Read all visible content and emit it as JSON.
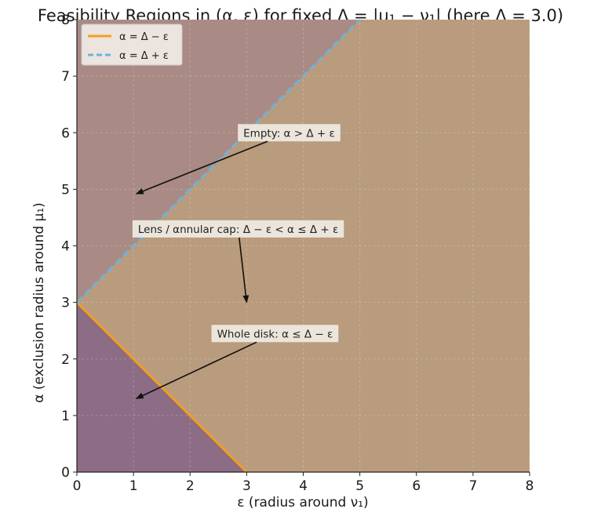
{
  "chart_data": {
    "type": "area",
    "title": "Feasibility Regions in (α, ε) for fixed Δ = |μ₁ − ν₁|  (here Δ = 3.0)",
    "xlabel": "ε (radius around ν₁)",
    "ylabel": "α (exclusion radius around μ₁)",
    "xlim": [
      0,
      8
    ],
    "ylim": [
      0,
      8
    ],
    "xticks": [
      0,
      1,
      2,
      3,
      4,
      5,
      6,
      7,
      8
    ],
    "yticks": [
      0,
      1,
      2,
      3,
      4,
      5,
      6,
      7,
      8
    ],
    "grid": true,
    "legend_position": "top-left",
    "delta": 3.0,
    "regions": [
      {
        "name": "Empty",
        "color": "#a98a84"
      },
      {
        "name": "Lens / annular cap",
        "color": "#b99b7d"
      },
      {
        "name": "Whole disk",
        "color": "#8d6c85"
      }
    ],
    "series": [
      {
        "name": "α = Δ − ε",
        "x": [
          0,
          3
        ],
        "y": [
          3,
          0
        ],
        "color": "#f0a020",
        "style": "solid"
      },
      {
        "name": "α = Δ + ε",
        "x": [
          0,
          5
        ],
        "y": [
          3,
          8
        ],
        "color": "#6cb4dc",
        "style": "dashed"
      }
    ],
    "annotations": [
      {
        "text": "Empty: α > Δ + ε",
        "text_at": [
          3.75,
          6.0
        ],
        "arrow_to": [
          1.05,
          4.92
        ]
      },
      {
        "text": "Lens / αnnular cap: Δ − ε < α ≤ Δ + ε",
        "text_at": [
          2.85,
          4.3
        ],
        "arrow_to": [
          3.0,
          3.0
        ]
      },
      {
        "text": "Whole disk: α ≤ Δ − ε",
        "text_at": [
          3.5,
          2.45
        ],
        "arrow_to": [
          1.05,
          1.3
        ]
      }
    ]
  }
}
